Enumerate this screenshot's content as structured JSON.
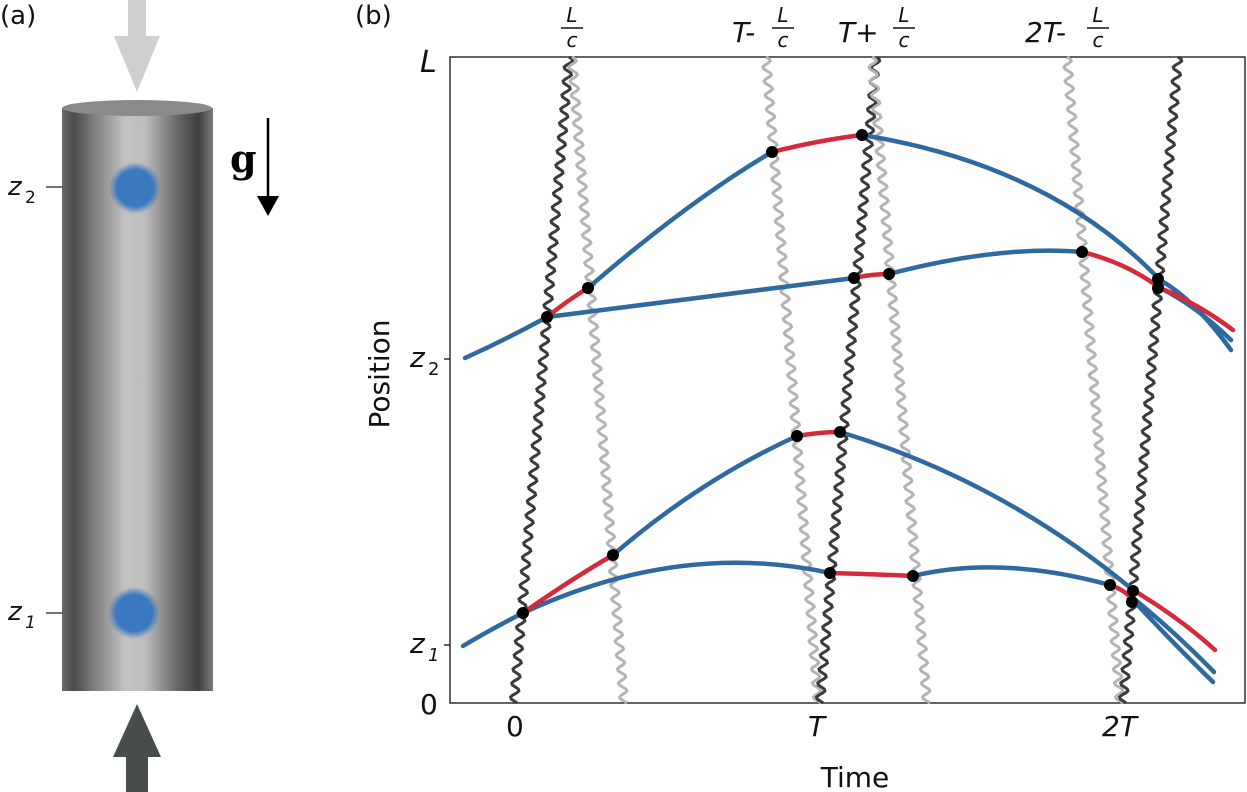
{
  "panel_a": {
    "label": "(a)",
    "z1_label": "z",
    "z1_sub": "1",
    "z2_label": "z",
    "z2_sub": "2",
    "gravity_label": "g"
  },
  "panel_b": {
    "label": "(b)",
    "y_axis_label": "Position",
    "x_axis_label": "Time",
    "x_ticks": {
      "t0": "0",
      "t1": "T",
      "t2": "2T"
    },
    "y_ticks": {
      "zero": "0",
      "z1": "z",
      "z1_sub": "1",
      "z2": "z",
      "z2_sub": "2",
      "L": "L"
    },
    "top_labels": {
      "lc": {
        "num": "L",
        "den": "c"
      },
      "t_minus": {
        "prefix": "T-",
        "num": "L",
        "den": "c"
      },
      "t_plus": {
        "prefix": "T+",
        "num": "L",
        "den": "c"
      },
      "two_t_minus": {
        "prefix": "2T-",
        "num": "L",
        "den": "c"
      }
    }
  },
  "colors": {
    "trajectory": "#2e6aa0",
    "interaction": "#d42a3c",
    "pulse_dark": "#3a3a3a",
    "pulse_light": "#b4b4b4",
    "atom": "#3a78c0",
    "point": "#000000"
  },
  "icons": [
    "down-arrow-icon",
    "up-arrow-icon",
    "gravity-arrow-icon"
  ]
}
